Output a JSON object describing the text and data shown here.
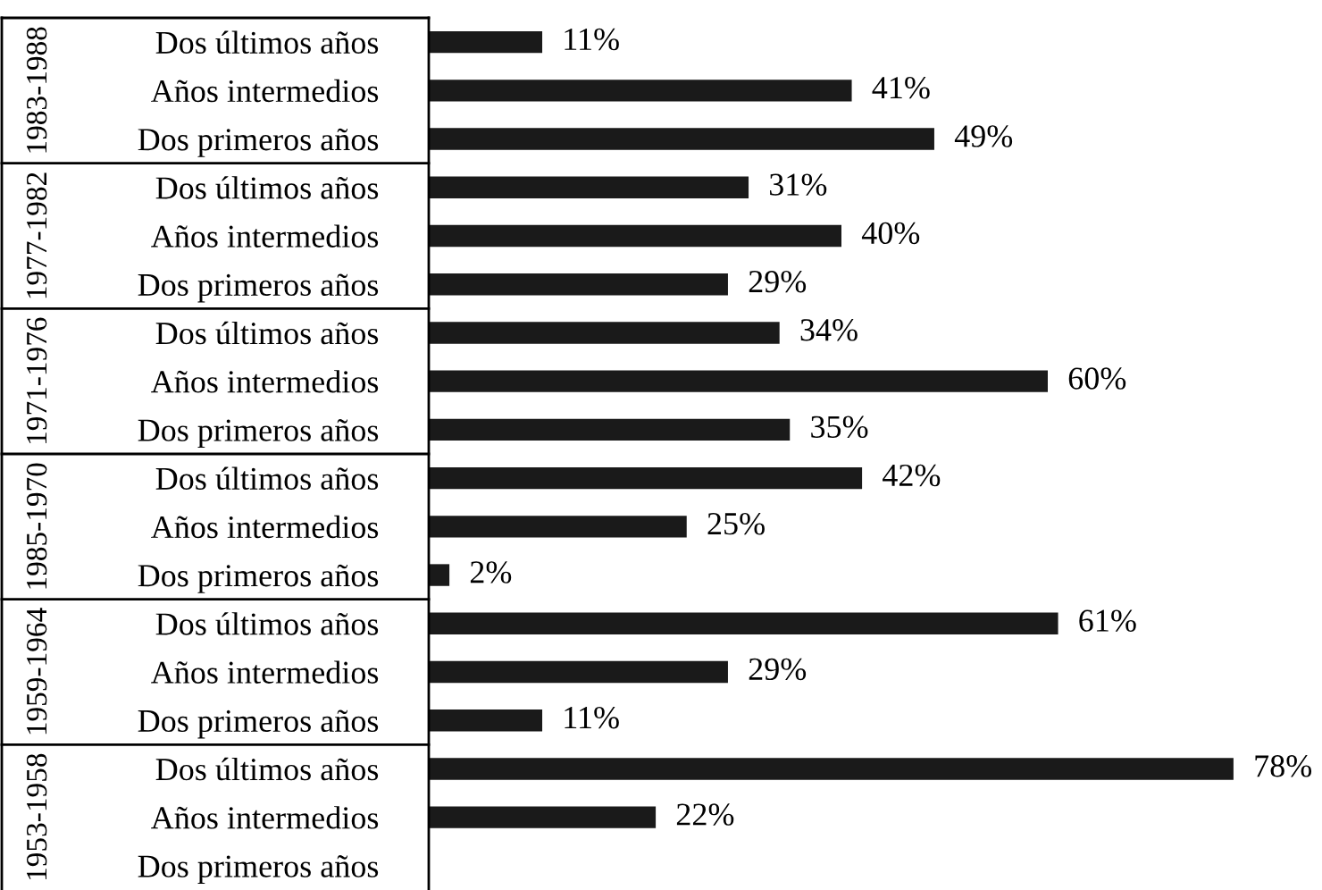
{
  "chart_data": {
    "type": "bar",
    "orientation": "horizontal",
    "categories": [
      "Dos últimos años",
      "Años intermedios",
      "Dos primeros años",
      "Dos últimos años",
      "Años intermedios",
      "Dos primeros años",
      "Dos últimos años",
      "Años intermedios",
      "Dos primeros años",
      "Dos últimos años",
      "Años intermedios",
      "Dos primeros años",
      "Dos últimos años",
      "Años intermedios",
      "Dos primeros años",
      "Dos últimos años",
      "Años intermedios",
      "Dos primeros años"
    ],
    "values": [
      11,
      41,
      49,
      31,
      40,
      29,
      34,
      60,
      35,
      42,
      25,
      2,
      61,
      29,
      11,
      78,
      22,
      null
    ],
    "value_labels": [
      "11%",
      "41%",
      "49%",
      "31%",
      "40%",
      "29%",
      "34%",
      "60%",
      "35%",
      "42%",
      "25%",
      "2%",
      "61%",
      "29%",
      "11%",
      "78%",
      "22%",
      null
    ],
    "color": "#1a1a1a",
    "annotations": [
      "1983-1988",
      "1977-1982",
      "1971-1976",
      "1985-1970",
      "1959-1964",
      "1953-1958"
    ],
    "grid": false,
    "legend": false
  }
}
